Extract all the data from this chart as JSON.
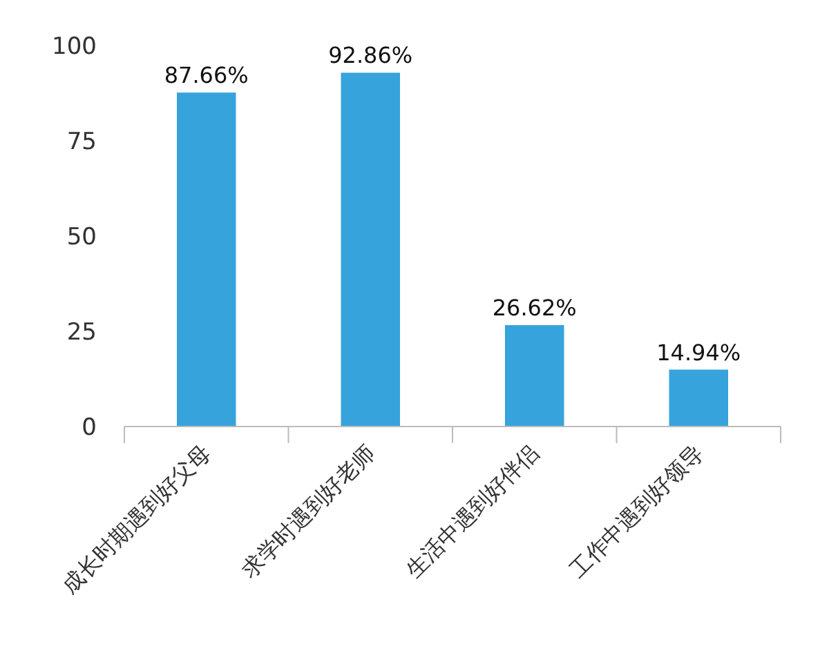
{
  "chart_data": {
    "type": "bar",
    "categories": [
      "成长时期遇到好父母",
      "求学时遇到好老师",
      "生活中遇到好伴侣",
      "工作中遇到好领导"
    ],
    "values": [
      87.66,
      92.86,
      26.62,
      14.94
    ],
    "value_labels": [
      "87.66%",
      "92.86%",
      "26.62%",
      "14.94%"
    ],
    "color": "#36a3dc",
    "ylim": [
      0,
      100
    ],
    "yticks": [
      0,
      25,
      50,
      75,
      100
    ],
    "grid": false
  }
}
